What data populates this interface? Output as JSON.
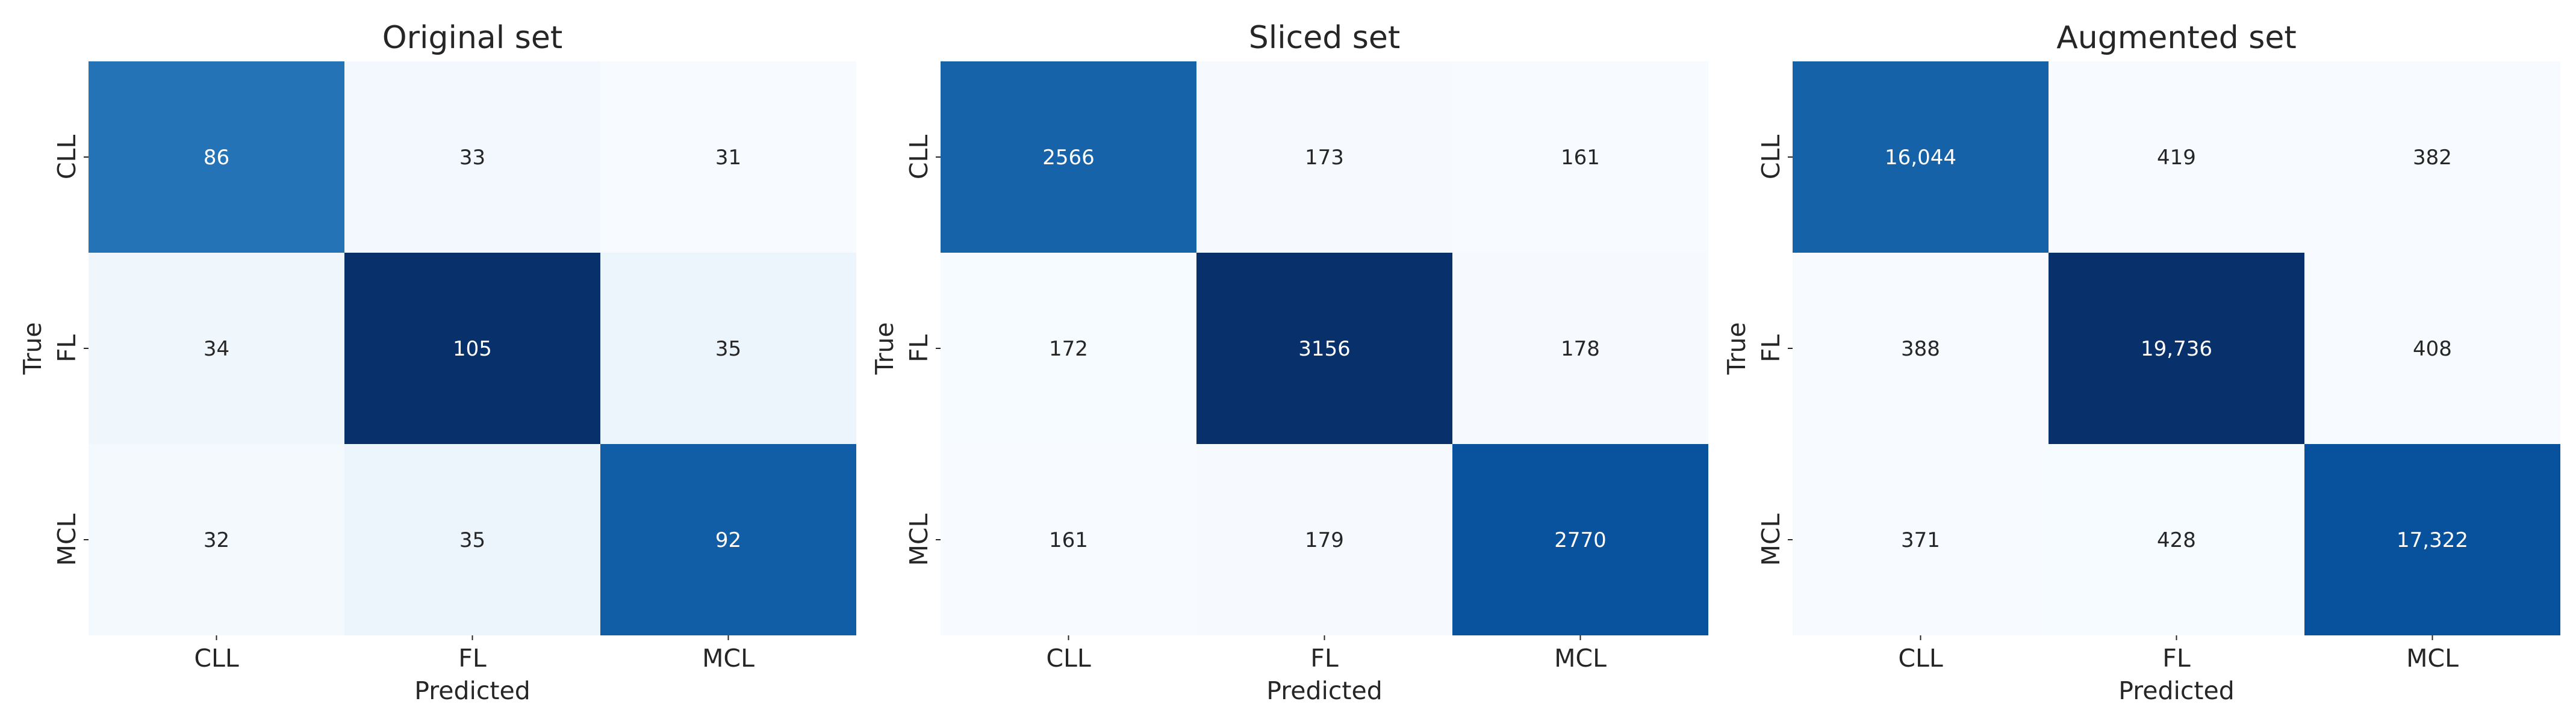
{
  "chart_data": [
    {
      "type": "heatmap",
      "title": "Original set",
      "xlabel": "Predicted",
      "ylabel": "True",
      "x_categories": [
        "CLL",
        "FL",
        "MCL"
      ],
      "y_categories": [
        "CLL",
        "FL",
        "MCL"
      ],
      "values": [
        [
          86,
          33,
          31
        ],
        [
          34,
          105,
          35
        ],
        [
          32,
          35,
          92
        ]
      ],
      "cell_labels": [
        [
          "86",
          "33",
          "31"
        ],
        [
          "34",
          "105",
          "35"
        ],
        [
          "32",
          "35",
          "92"
        ]
      ],
      "colormap": "Blues",
      "colorbar": false
    },
    {
      "type": "heatmap",
      "title": "Sliced set",
      "xlabel": "Predicted",
      "ylabel": "True",
      "x_categories": [
        "CLL",
        "FL",
        "MCL"
      ],
      "y_categories": [
        "CLL",
        "FL",
        "MCL"
      ],
      "values": [
        [
          2566,
          173,
          161
        ],
        [
          172,
          3156,
          178
        ],
        [
          161,
          179,
          2770
        ]
      ],
      "cell_labels": [
        [
          "2566",
          "173",
          "161"
        ],
        [
          "172",
          "3156",
          "178"
        ],
        [
          "161",
          "179",
          "2770"
        ]
      ],
      "colormap": "Blues",
      "colorbar": false
    },
    {
      "type": "heatmap",
      "title": "Augmented set",
      "xlabel": "Predicted",
      "ylabel": "True",
      "x_categories": [
        "CLL",
        "FL",
        "MCL"
      ],
      "y_categories": [
        "CLL",
        "FL",
        "MCL"
      ],
      "values": [
        [
          16044,
          419,
          382
        ],
        [
          388,
          19736,
          408
        ],
        [
          371,
          428,
          17322
        ]
      ],
      "cell_labels": [
        [
          "16,044",
          "419",
          "382"
        ],
        [
          "388",
          "19,736",
          "408"
        ],
        [
          "371",
          "428",
          "17,322"
        ]
      ],
      "colormap": "Blues",
      "colorbar": false
    }
  ]
}
